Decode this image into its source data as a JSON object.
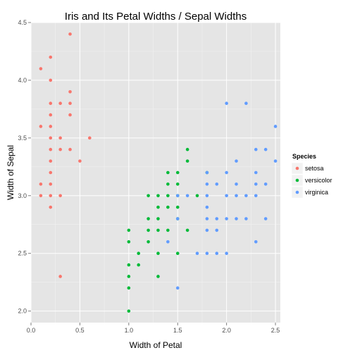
{
  "chart_data": {
    "type": "scatter",
    "title": "Iris and Its Petal Widths / Sepal Widths",
    "xlabel": "Width of Petal",
    "ylabel": "Width of Sepal",
    "xlim": [
      0,
      2.55
    ],
    "ylim": [
      1.9,
      4.5
    ],
    "x_ticks": [
      0.0,
      0.5,
      1.0,
      1.5,
      2.0,
      2.5
    ],
    "x_tick_labels": [
      "0.0",
      "0.5",
      "1.0",
      "1.5",
      "2.0",
      "2.5"
    ],
    "y_ticks": [
      2.0,
      2.5,
      3.0,
      3.5,
      4.0,
      4.5
    ],
    "y_tick_labels": [
      "2.0",
      "2.5",
      "3.0",
      "3.5",
      "4.0",
      "4.5"
    ],
    "grid": true,
    "legend": {
      "title": "Species",
      "position": "right"
    },
    "series": [
      {
        "name": "setosa",
        "color": "#f8766d",
        "points": [
          [
            0.1,
            4.1
          ],
          [
            0.1,
            3.6
          ],
          [
            0.1,
            3.1
          ],
          [
            0.1,
            3.0
          ],
          [
            0.2,
            4.2
          ],
          [
            0.2,
            4.0
          ],
          [
            0.2,
            3.8
          ],
          [
            0.2,
            3.7
          ],
          [
            0.2,
            3.6
          ],
          [
            0.2,
            3.5
          ],
          [
            0.2,
            3.4
          ],
          [
            0.2,
            3.3
          ],
          [
            0.2,
            3.2
          ],
          [
            0.2,
            3.1
          ],
          [
            0.2,
            3.0
          ],
          [
            0.2,
            2.9
          ],
          [
            0.3,
            3.8
          ],
          [
            0.3,
            3.5
          ],
          [
            0.3,
            3.4
          ],
          [
            0.3,
            3.0
          ],
          [
            0.3,
            2.3
          ],
          [
            0.4,
            4.4
          ],
          [
            0.4,
            3.9
          ],
          [
            0.4,
            3.8
          ],
          [
            0.4,
            3.7
          ],
          [
            0.4,
            3.4
          ],
          [
            0.5,
            3.3
          ],
          [
            0.6,
            3.5
          ]
        ]
      },
      {
        "name": "versicolor",
        "color": "#00ba38",
        "points": [
          [
            1.0,
            2.7
          ],
          [
            1.0,
            2.6
          ],
          [
            1.0,
            2.4
          ],
          [
            1.0,
            2.3
          ],
          [
            1.0,
            2.2
          ],
          [
            1.0,
            2.0
          ],
          [
            1.1,
            2.5
          ],
          [
            1.1,
            2.4
          ],
          [
            1.2,
            3.0
          ],
          [
            1.2,
            2.8
          ],
          [
            1.2,
            2.7
          ],
          [
            1.2,
            2.6
          ],
          [
            1.3,
            3.0
          ],
          [
            1.3,
            2.9
          ],
          [
            1.3,
            2.8
          ],
          [
            1.3,
            2.7
          ],
          [
            1.3,
            2.5
          ],
          [
            1.3,
            2.3
          ],
          [
            1.4,
            3.2
          ],
          [
            1.4,
            3.1
          ],
          [
            1.4,
            3.0
          ],
          [
            1.4,
            2.9
          ],
          [
            1.4,
            2.7
          ],
          [
            1.5,
            3.2
          ],
          [
            1.5,
            3.1
          ],
          [
            1.5,
            3.0
          ],
          [
            1.5,
            2.9
          ],
          [
            1.5,
            2.8
          ],
          [
            1.5,
            2.5
          ],
          [
            1.6,
            3.4
          ],
          [
            1.6,
            3.3
          ],
          [
            1.6,
            2.7
          ],
          [
            1.7,
            3.0
          ],
          [
            1.8,
            3.2
          ]
        ]
      },
      {
        "name": "virginica",
        "color": "#619cff",
        "points": [
          [
            1.4,
            2.6
          ],
          [
            1.5,
            3.0
          ],
          [
            1.5,
            2.8
          ],
          [
            1.5,
            2.2
          ],
          [
            1.6,
            3.0
          ],
          [
            1.7,
            2.5
          ],
          [
            1.8,
            3.2
          ],
          [
            1.8,
            3.1
          ],
          [
            1.8,
            3.0
          ],
          [
            1.8,
            2.9
          ],
          [
            1.8,
            2.8
          ],
          [
            1.8,
            2.7
          ],
          [
            1.8,
            2.5
          ],
          [
            1.9,
            3.1
          ],
          [
            1.9,
            2.8
          ],
          [
            1.9,
            2.7
          ],
          [
            1.9,
            2.5
          ],
          [
            2.0,
            3.8
          ],
          [
            2.0,
            3.2
          ],
          [
            2.0,
            3.0
          ],
          [
            2.0,
            2.8
          ],
          [
            2.0,
            2.5
          ],
          [
            2.1,
            3.3
          ],
          [
            2.1,
            3.1
          ],
          [
            2.1,
            3.0
          ],
          [
            2.1,
            2.8
          ],
          [
            2.2,
            3.8
          ],
          [
            2.2,
            3.0
          ],
          [
            2.2,
            2.8
          ],
          [
            2.3,
            3.4
          ],
          [
            2.3,
            3.2
          ],
          [
            2.3,
            3.1
          ],
          [
            2.3,
            3.0
          ],
          [
            2.3,
            2.6
          ],
          [
            2.4,
            3.4
          ],
          [
            2.4,
            3.1
          ],
          [
            2.4,
            2.8
          ],
          [
            2.5,
            3.6
          ],
          [
            2.5,
            3.3
          ]
        ]
      }
    ]
  }
}
